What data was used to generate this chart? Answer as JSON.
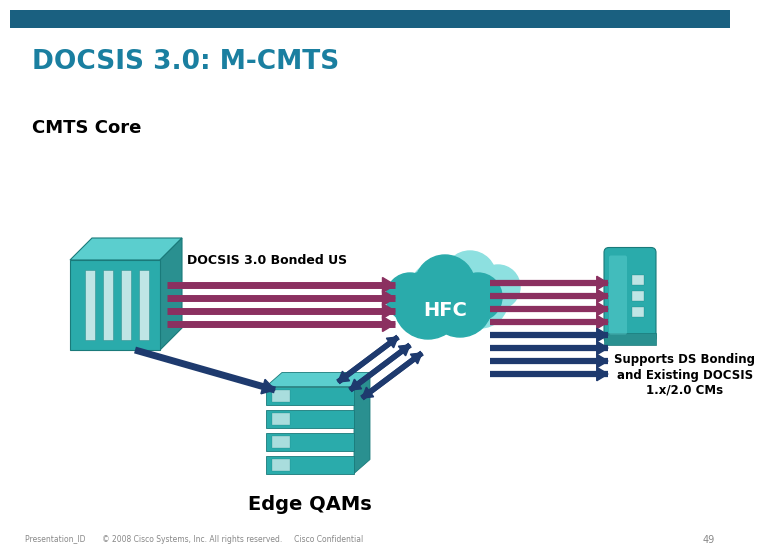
{
  "title": "DOCSIS 3.0: M-CMTS",
  "title_color": "#1a7fa0",
  "header_bar_color": "#1a6080",
  "bg_color": "#ffffff",
  "cmts_label": "CMTS Core",
  "us_label": "DOCSIS 3.0 Bonded US",
  "hfc_label": "HFC",
  "edge_label": "Edge QAMs",
  "support_label": "Supports DS Bonding\nand Existing DOCSIS\n1.x/2.0 CMs",
  "footer_text": "Presentation_ID       © 2008 Cisco Systems, Inc. All rights reserved.     Cisco Confidential",
  "footer_page": "49",
  "purple_color": "#8b3060",
  "blue_color": "#1e3a6e",
  "teal_light": "#5bcece",
  "teal_mid": "#2aabab",
  "teal_dark": "#1a7a7a",
  "teal_side": "#2a9090"
}
